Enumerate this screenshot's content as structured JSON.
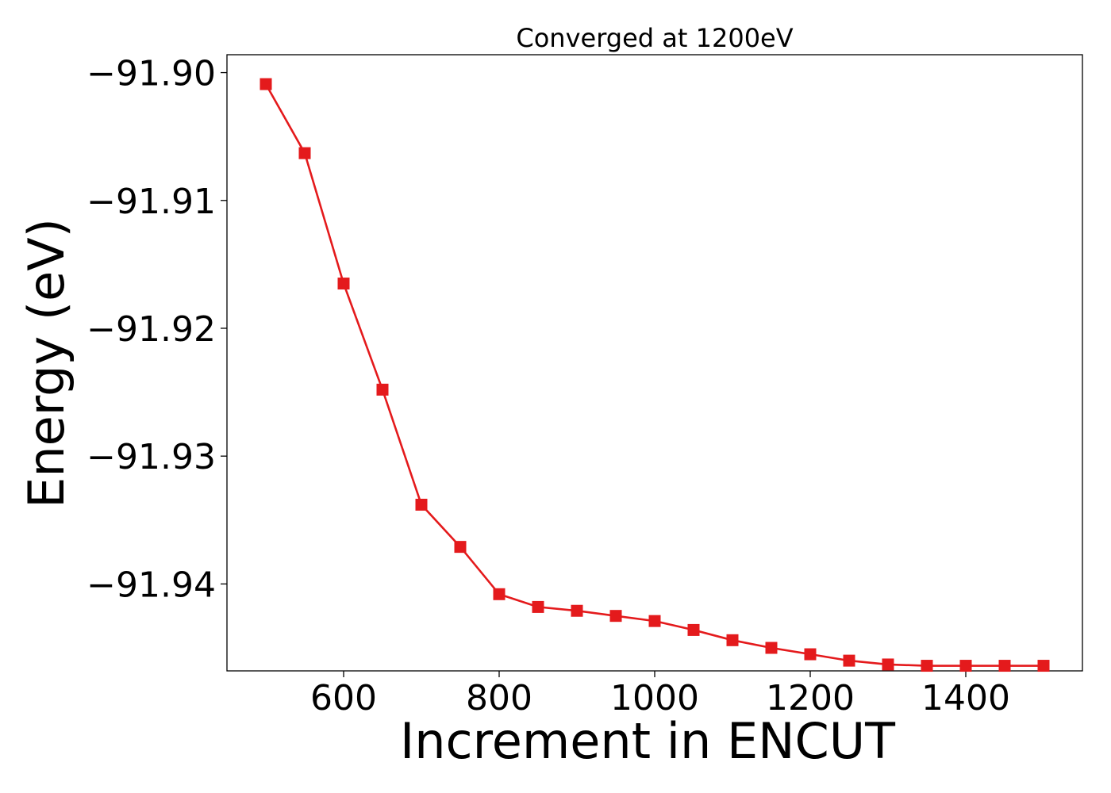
{
  "chart_data": {
    "type": "line",
    "title": "Converged at 1200eV",
    "xlabel": "Increment in ENCUT",
    "ylabel": "Energy (eV)",
    "xlim": [
      450,
      1550
    ],
    "ylim": [
      -91.9468,
      -91.8986
    ],
    "x_ticks": [
      600,
      800,
      1000,
      1200,
      1400
    ],
    "y_ticks": [
      -91.9,
      -91.91,
      -91.92,
      -91.93,
      -91.94
    ],
    "x_tick_labels": [
      "600",
      "800",
      "1000",
      "1200",
      "1400"
    ],
    "y_tick_labels": [
      "−91.90",
      "−91.91",
      "−91.92",
      "−91.93",
      "−91.94"
    ],
    "grid": false,
    "series": [
      {
        "color": "#e41a1c",
        "marker": "square",
        "x": [
          500,
          550,
          600,
          650,
          700,
          750,
          800,
          850,
          900,
          950,
          1000,
          1050,
          1100,
          1150,
          1200,
          1250,
          1300,
          1350,
          1400,
          1450,
          1500
        ],
        "y": [
          -91.9009,
          -91.9063,
          -91.9165,
          -91.9248,
          -91.9338,
          -91.9371,
          -91.9408,
          -91.9418,
          -91.9421,
          -91.9425,
          -91.9429,
          -91.9436,
          -91.9444,
          -91.945,
          -91.9455,
          -91.946,
          -91.9463,
          -91.9464,
          -91.9464,
          -91.9464,
          -91.9464
        ]
      }
    ]
  }
}
